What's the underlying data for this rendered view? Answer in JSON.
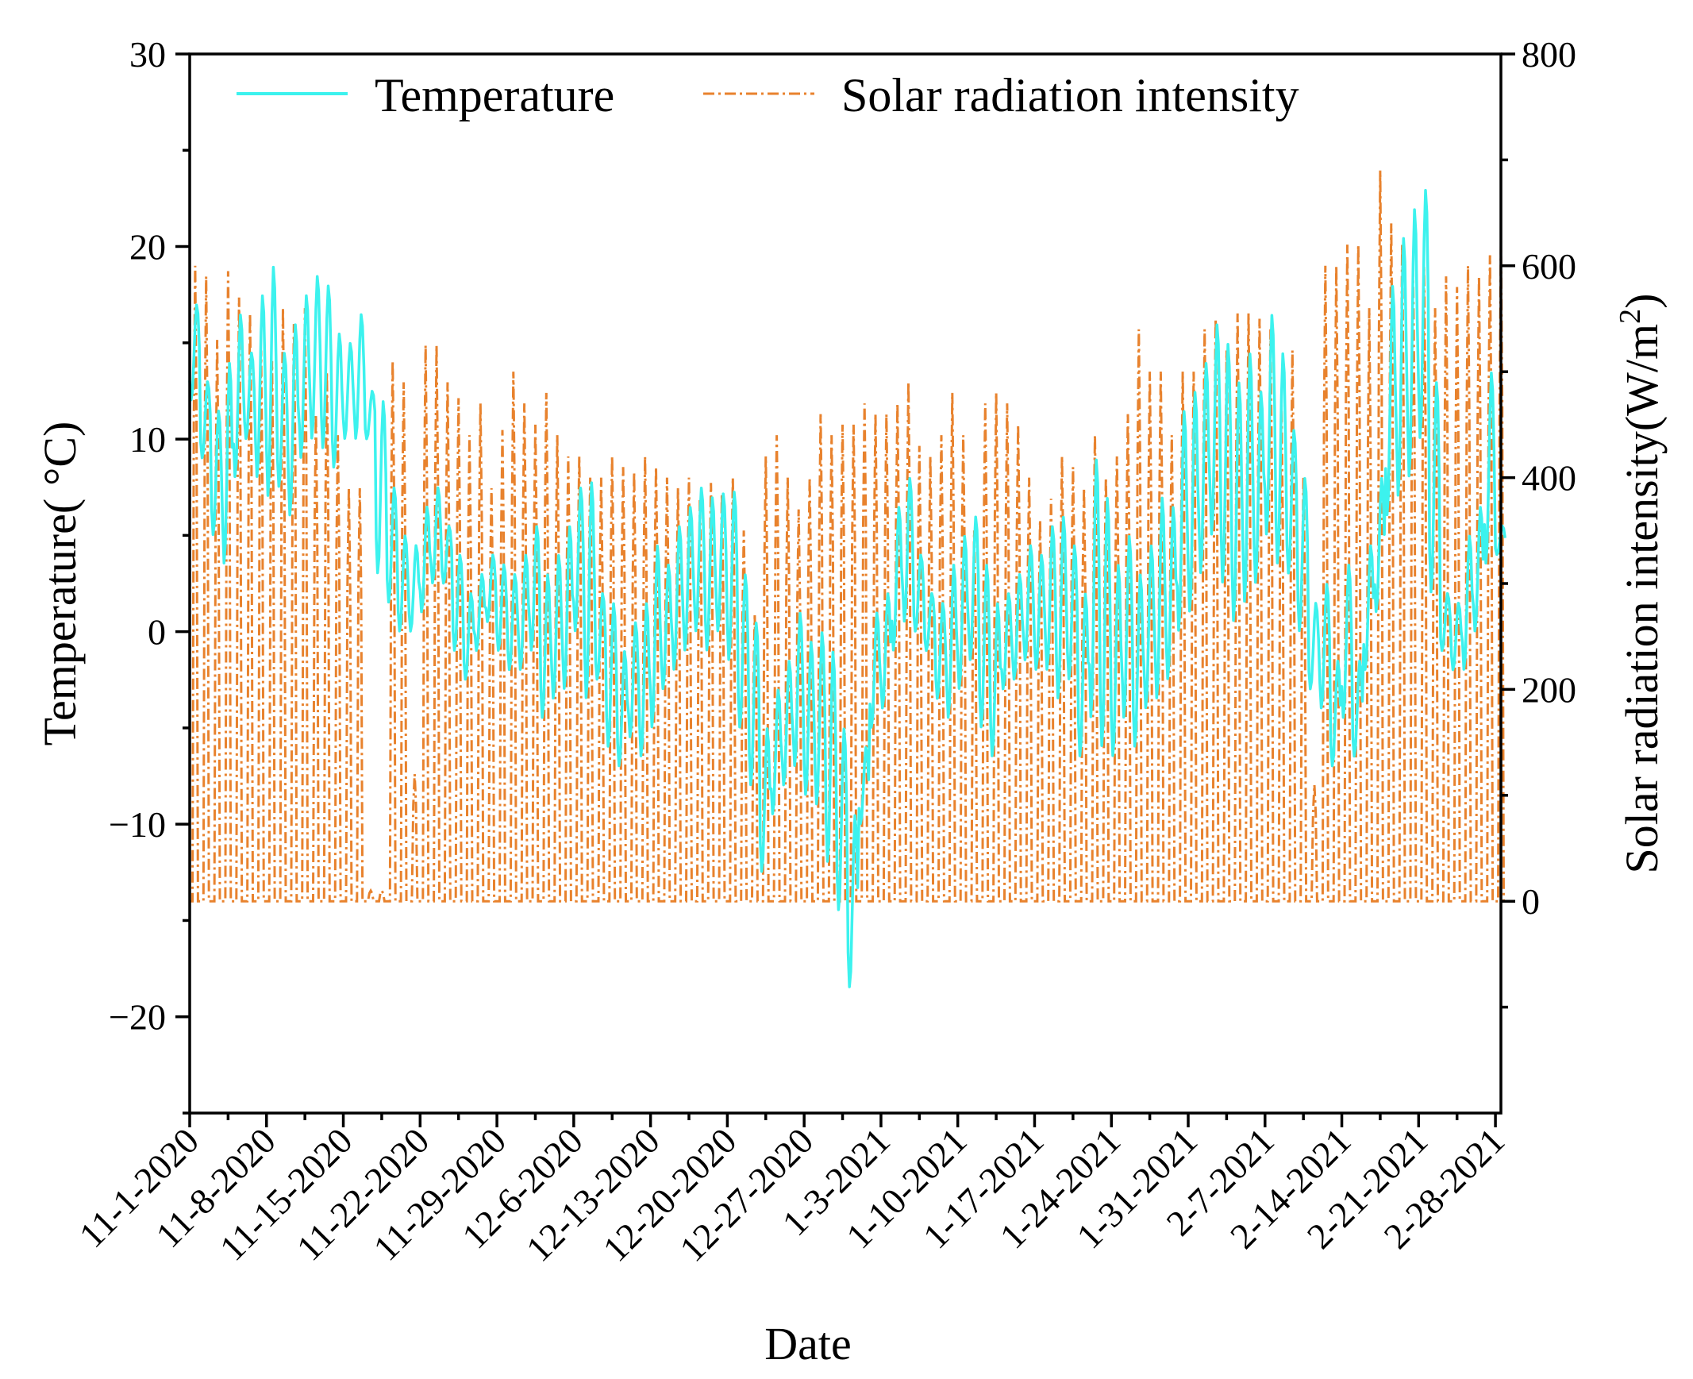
{
  "chart_data": {
    "type": "line",
    "title": "",
    "xlabel": "Date",
    "ylabel_left": "Temperature(",
    "ylabel_left_unit": "°C)",
    "ylabel_right": "Solar radiation intensity(W/m",
    "ylabel_right_sup": "2",
    "ylabel_right_close": ")",
    "xlim_days": [
      0,
      119.5
    ],
    "ylim_left": [
      -25,
      30
    ],
    "ylim_right": [
      -200,
      800
    ],
    "left_ticks": [
      30,
      20,
      10,
      0,
      -10,
      -20
    ],
    "left_tick_labels": [
      "30",
      "20",
      "10",
      "0",
      "−10",
      "−20"
    ],
    "right_ticks": [
      800,
      600,
      400,
      200,
      0
    ],
    "right_tick_labels": [
      "800",
      "600",
      "400",
      "200",
      "0"
    ],
    "x_tick_days": [
      0,
      7,
      14,
      21,
      28,
      35,
      42,
      49,
      56,
      63,
      70,
      77,
      84,
      91,
      98,
      105,
      112,
      119
    ],
    "x_tick_labels": [
      "11-1-2020",
      "11-8-2020",
      "11-15-2020",
      "11-22-2020",
      "11-29-2020",
      "12-6-2020",
      "12-13-2020",
      "12-20-2020",
      "12-27-2020",
      "1-3-2021",
      "1-10-2021",
      "1-17-2021",
      "1-24-2021",
      "1-31-2021",
      "2-7-2021",
      "2-14-2021",
      "2-21-2021",
      "2-28-2021"
    ],
    "legend": [
      "Temperature",
      "Solar radiation intensity"
    ],
    "legend_position": "top-left",
    "colors": {
      "temperature": "#3CF2EE",
      "solar": "#E8822D",
      "axis": "#000000"
    },
    "series": [
      {
        "name": "Temperature",
        "axis": "left",
        "daily_max": [
          17.0,
          13.0,
          11.5,
          14.0,
          16.5,
          14.5,
          17.5,
          19.0,
          14.5,
          16.0,
          17.5,
          18.5,
          18.0,
          15.5,
          15.0,
          16.5,
          12.5,
          12.0,
          7.5,
          5.0,
          4.5,
          6.5,
          7.5,
          5.5,
          4.0,
          2.0,
          3.0,
          4.0,
          3.5,
          3.0,
          4.0,
          5.5,
          3.0,
          4.0,
          5.5,
          7.5,
          7.8,
          2.0,
          1.5,
          -1.0,
          0.5,
          1.5,
          4.5,
          3.5,
          5.5,
          6.5,
          7.5,
          7.0,
          7.2,
          7.3,
          3.0,
          0.5,
          -5.0,
          -3.0,
          -1.5,
          1.0,
          -0.5,
          0.0,
          -1.0,
          -5.0,
          -9.5,
          -6.0,
          1.0,
          2.0,
          6.5,
          8.0,
          4.0,
          2.0,
          1.5,
          3.5,
          5.0,
          6.0,
          3.5,
          1.5,
          2.0,
          3.0,
          4.5,
          4.0,
          5.5,
          6.0,
          4.5,
          2.0,
          9.0,
          7.0,
          3.5,
          5.0,
          3.0,
          4.5,
          7.0,
          6.5,
          11.5,
          12.5,
          14.0,
          16.0,
          15.0,
          13.0,
          14.5,
          12.5,
          16.5,
          14.5,
          10.5,
          8.0,
          1.5,
          2.5,
          -1.5,
          3.5,
          -1.5,
          4.5,
          8.0,
          18.0,
          20.5,
          22.0,
          23.0,
          13.0,
          2.0,
          1.5,
          5.0,
          6.5,
          13.5,
          5.5
        ],
        "daily_min": [
          12.0,
          9.0,
          5.0,
          3.5,
          8.0,
          10.0,
          8.0,
          7.0,
          7.5,
          6.0,
          9.0,
          10.0,
          9.5,
          8.5,
          10.0,
          10.0,
          10.0,
          3.0,
          1.5,
          0.0,
          0.0,
          1.0,
          2.5,
          2.5,
          -1.0,
          -2.5,
          -1.0,
          0.5,
          -1.0,
          -2.0,
          -2.0,
          -1.0,
          -4.5,
          -3.5,
          -3.0,
          0.0,
          -3.5,
          -2.5,
          -6.0,
          -7.0,
          -5.5,
          -6.5,
          -5.0,
          -3.0,
          -2.0,
          -1.0,
          0.0,
          -1.0,
          0.0,
          -1.5,
          -5.0,
          -8.0,
          -12.5,
          -9.5,
          -8.0,
          -7.0,
          -8.5,
          -9.0,
          -12.0,
          -14.5,
          -18.5,
          -10.0,
          -5.0,
          -4.0,
          -1.0,
          0.5,
          0.0,
          -1.0,
          -3.5,
          -4.5,
          -3.0,
          -1.5,
          -5.0,
          -6.5,
          -3.0,
          -2.5,
          -1.5,
          -2.0,
          -2.0,
          -3.5,
          -2.5,
          -6.5,
          -4.5,
          -6.0,
          -6.5,
          -4.5,
          -6.0,
          -4.0,
          -3.5,
          -2.5,
          0.0,
          1.0,
          3.0,
          5.0,
          2.5,
          0.5,
          1.5,
          2.5,
          5.0,
          3.5,
          3.0,
          0.0,
          -3.0,
          -4.0,
          -7.0,
          -4.5,
          -6.5,
          -2.0,
          1.0,
          6.0,
          7.0,
          8.0,
          10.0,
          2.0,
          -1.0,
          -2.0,
          -2.0,
          0.0,
          3.5,
          4.0
        ]
      },
      {
        "name": "Solar radiation intensity",
        "axis": "right",
        "daily_peak": [
          600,
          590,
          530,
          595,
          570,
          555,
          520,
          510,
          560,
          545,
          560,
          460,
          500,
          440,
          390,
          390,
          10,
          10,
          510,
          490,
          120,
          525,
          525,
          490,
          475,
          440,
          470,
          390,
          445,
          500,
          470,
          450,
          480,
          440,
          420,
          420,
          400,
          400,
          420,
          410,
          405,
          420,
          410,
          400,
          390,
          400,
          380,
          395,
          385,
          400,
          350,
          270,
          420,
          440,
          400,
          370,
          400,
          460,
          440,
          450,
          450,
          470,
          460,
          460,
          470,
          490,
          430,
          420,
          440,
          480,
          440,
          350,
          470,
          480,
          470,
          450,
          400,
          360,
          380,
          420,
          410,
          390,
          440,
          400,
          420,
          460,
          540,
          500,
          500,
          440,
          500,
          500,
          540,
          550,
          520,
          555,
          555,
          550,
          540,
          470,
          520,
          400,
          110,
          600,
          600,
          620,
          620,
          560,
          690,
          640,
          620,
          595,
          600,
          560,
          590,
          580,
          600,
          590,
          610,
          620
        ]
      }
    ]
  }
}
